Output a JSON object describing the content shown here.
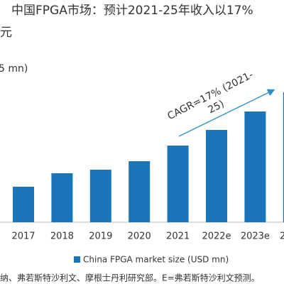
{
  "chart_data": {
    "type": "bar",
    "title": [
      "中国FPGA市场：预计2021-25年收入以17%",
      "元"
    ],
    "y_axis_label": "5 mn)",
    "annotation": [
      "CAGR=17% (2021-",
      "25)"
    ],
    "categories": [
      "2017",
      "2018",
      "2019",
      "2020",
      "2021",
      "2022e",
      "2023e",
      "2"
    ],
    "series": [
      {
        "name": "China FPGA market size (USD mn)",
        "color": "#1a75b8",
        "values": [
          50,
          69,
          74,
          86,
          108,
          130,
          156,
          183
        ]
      }
    ],
    "ylim": [
      0,
      200
    ],
    "source": "纳、弗若斯特沙利文、摩根士丹利研究部。E=弗若斯特沙利文预测。"
  }
}
